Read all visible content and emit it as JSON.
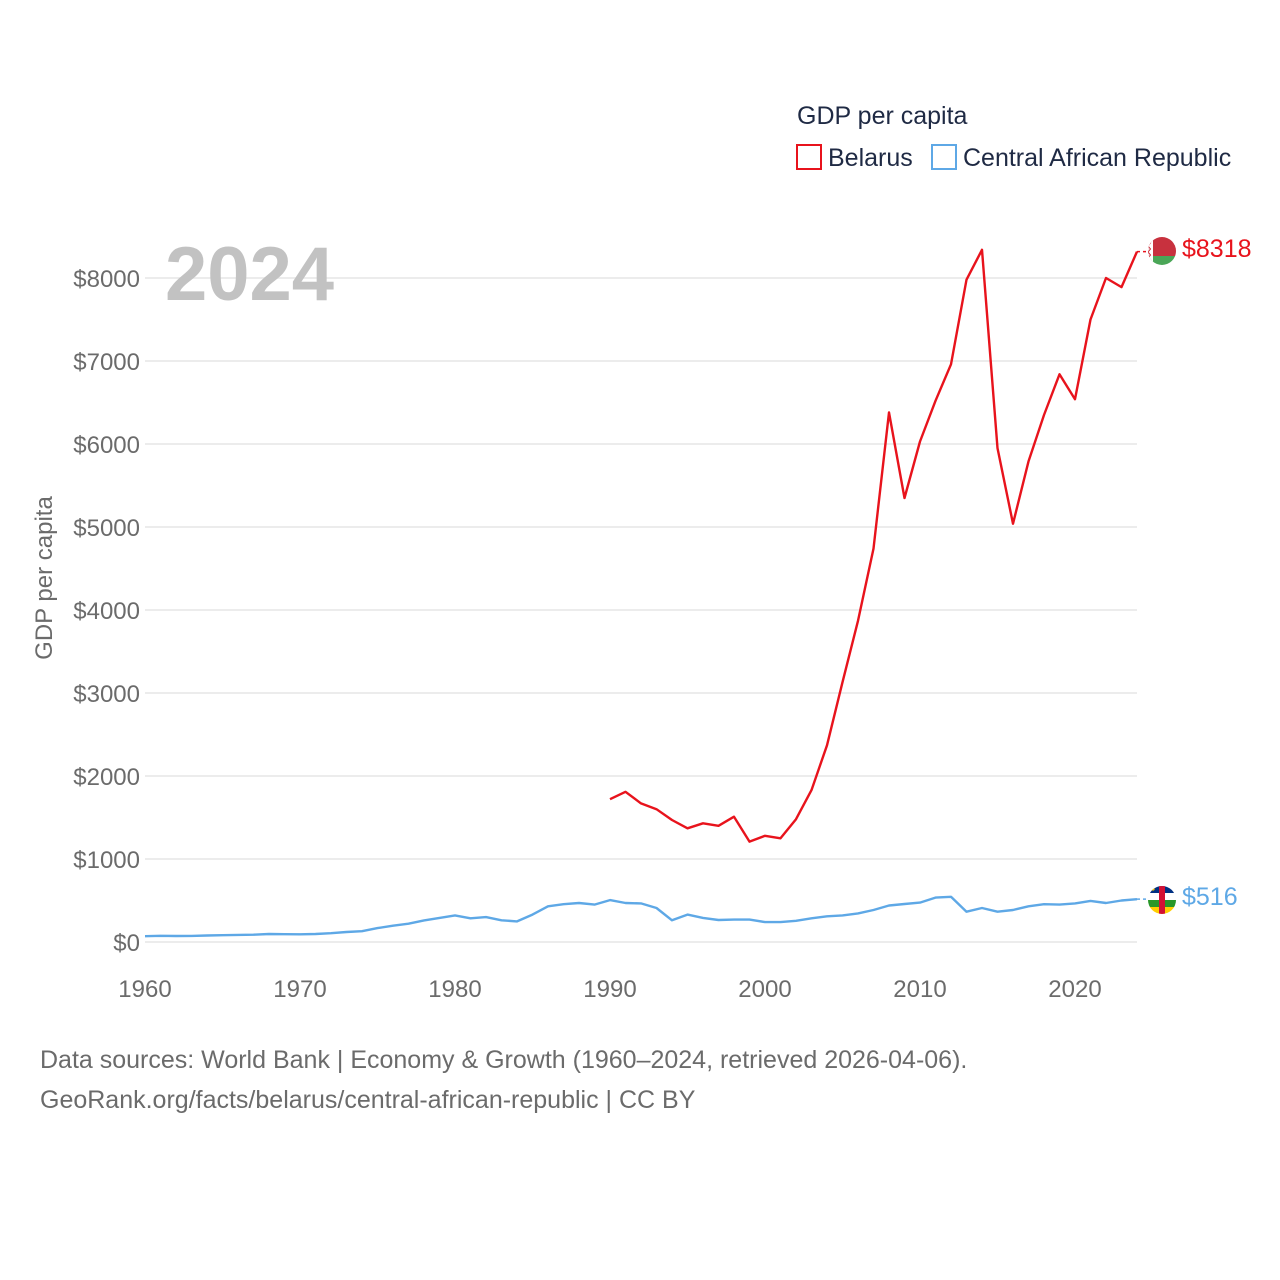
{
  "chart_data": {
    "type": "line",
    "title": "GDP per capita",
    "year_label": "2024",
    "ylabel": "GDP per capita",
    "xlim": [
      1960,
      2024
    ],
    "ylim": [
      0,
      8000
    ],
    "x_ticks": [
      1960,
      1970,
      1980,
      1990,
      2000,
      2010,
      2020
    ],
    "x_tick_labels": [
      "1960",
      "1970",
      "1980",
      "1990",
      "2000",
      "2010",
      "2020"
    ],
    "y_ticks": [
      0,
      1000,
      2000,
      3000,
      4000,
      5000,
      6000,
      7000,
      8000
    ],
    "y_tick_labels": [
      "$0",
      "$1000",
      "$2000",
      "$3000",
      "$4000",
      "$5000",
      "$6000",
      "$7000",
      "$8000"
    ],
    "legend": {
      "title": "GDP per capita",
      "position": "top-right"
    },
    "series": [
      {
        "name": "Belarus",
        "color": "#e8131c",
        "end_label": "$8318",
        "flag": "belarus-flag",
        "points": [
          [
            1990,
            1720
          ],
          [
            1991,
            1810
          ],
          [
            1992,
            1670
          ],
          [
            1993,
            1600
          ],
          [
            1994,
            1470
          ],
          [
            1995,
            1370
          ],
          [
            1996,
            1430
          ],
          [
            1997,
            1400
          ],
          [
            1998,
            1510
          ],
          [
            1999,
            1210
          ],
          [
            2000,
            1280
          ],
          [
            2001,
            1250
          ],
          [
            2002,
            1480
          ],
          [
            2003,
            1830
          ],
          [
            2004,
            2370
          ],
          [
            2005,
            3130
          ],
          [
            2006,
            3870
          ],
          [
            2007,
            4740
          ],
          [
            2008,
            6380
          ],
          [
            2009,
            5350
          ],
          [
            2010,
            6030
          ],
          [
            2011,
            6520
          ],
          [
            2012,
            6960
          ],
          [
            2013,
            7980
          ],
          [
            2014,
            8340
          ],
          [
            2015,
            5950
          ],
          [
            2016,
            5040
          ],
          [
            2017,
            5790
          ],
          [
            2018,
            6350
          ],
          [
            2019,
            6840
          ],
          [
            2020,
            6540
          ],
          [
            2021,
            7500
          ],
          [
            2022,
            8000
          ],
          [
            2023,
            7890
          ],
          [
            2024,
            8318
          ]
        ]
      },
      {
        "name": "Central African Republic",
        "color": "#5ea8e6",
        "end_label": "$516",
        "flag": "central-african-republic-flag",
        "points": [
          [
            1960,
            70
          ],
          [
            1961,
            75
          ],
          [
            1962,
            72
          ],
          [
            1963,
            74
          ],
          [
            1964,
            78
          ],
          [
            1965,
            82
          ],
          [
            1966,
            86
          ],
          [
            1967,
            88
          ],
          [
            1968,
            96
          ],
          [
            1969,
            94
          ],
          [
            1970,
            93
          ],
          [
            1971,
            96
          ],
          [
            1972,
            106
          ],
          [
            1973,
            121
          ],
          [
            1974,
            130
          ],
          [
            1975,
            168
          ],
          [
            1976,
            196
          ],
          [
            1977,
            220
          ],
          [
            1978,
            260
          ],
          [
            1979,
            290
          ],
          [
            1980,
            320
          ],
          [
            1981,
            285
          ],
          [
            1982,
            300
          ],
          [
            1983,
            262
          ],
          [
            1984,
            248
          ],
          [
            1985,
            330
          ],
          [
            1986,
            430
          ],
          [
            1987,
            455
          ],
          [
            1988,
            470
          ],
          [
            1989,
            450
          ],
          [
            1990,
            505
          ],
          [
            1991,
            470
          ],
          [
            1992,
            465
          ],
          [
            1993,
            410
          ],
          [
            1994,
            262
          ],
          [
            1995,
            330
          ],
          [
            1996,
            290
          ],
          [
            1997,
            265
          ],
          [
            1998,
            270
          ],
          [
            1999,
            270
          ],
          [
            2000,
            240
          ],
          [
            2001,
            240
          ],
          [
            2002,
            255
          ],
          [
            2003,
            285
          ],
          [
            2004,
            310
          ],
          [
            2005,
            320
          ],
          [
            2006,
            345
          ],
          [
            2007,
            385
          ],
          [
            2008,
            440
          ],
          [
            2009,
            458
          ],
          [
            2010,
            475
          ],
          [
            2011,
            535
          ],
          [
            2012,
            545
          ],
          [
            2013,
            365
          ],
          [
            2014,
            410
          ],
          [
            2015,
            365
          ],
          [
            2016,
            385
          ],
          [
            2017,
            430
          ],
          [
            2018,
            455
          ],
          [
            2019,
            450
          ],
          [
            2020,
            465
          ],
          [
            2021,
            495
          ],
          [
            2022,
            470
          ],
          [
            2023,
            500
          ],
          [
            2024,
            516
          ]
        ]
      }
    ]
  },
  "footer": {
    "source_line": "Data sources: World Bank | Economy & Growth (1960–2024, retrieved 2026-04-06).",
    "url_line": "GeoRank.org/facts/belarus/central-african-republic | CC BY"
  }
}
